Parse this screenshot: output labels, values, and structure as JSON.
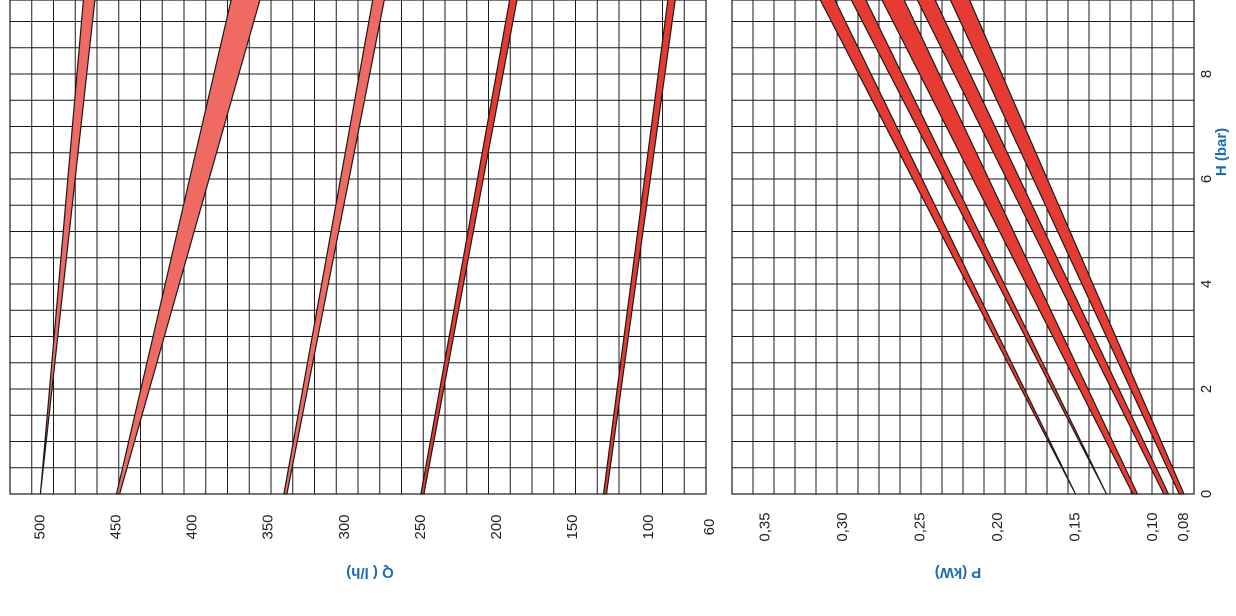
{
  "colors": {
    "band_fill": "#e63b32",
    "band_fill_light": "#ee6a63",
    "grid": "#1a1a1a",
    "axis_label": "#1c6cb5"
  },
  "chart_data": [
    {
      "type": "area",
      "title": "",
      "xlabel": "Q ( l/h)",
      "ylabel": "H (bar)",
      "xlim": [
        60,
        520
      ],
      "ylim": [
        0,
        10
      ],
      "x_reversed": true,
      "x_ticks": [
        "500",
        "450",
        "400",
        "350",
        "300",
        "250",
        "200",
        "150",
        "100",
        "60"
      ],
      "y_ticks": [
        "0",
        "2",
        "4",
        "6",
        "8"
      ],
      "grid": true,
      "series": [
        {
          "label_at_zero": "500",
          "lower": [
            [
              500,
              0
            ],
            [
              470,
              10
            ]
          ],
          "upper": [
            [
              500,
              0
            ],
            [
              462,
              10
            ]
          ]
        },
        {
          "label_at_zero": "450",
          "lower": [
            [
              450,
              0
            ],
            [
              370,
              10
            ]
          ],
          "upper": [
            [
              448,
              0
            ],
            [
              350,
              10
            ]
          ]
        },
        {
          "label_at_zero": "340",
          "lower": [
            [
              340,
              0
            ],
            [
              278,
              10
            ]
          ],
          "upper": [
            [
              338,
              0
            ],
            [
              270,
              10
            ]
          ]
        },
        {
          "label_at_zero": "250",
          "lower": [
            [
              250,
              0
            ],
            [
              188,
              10
            ]
          ],
          "upper": [
            [
              248,
              0
            ],
            [
              183,
              10
            ]
          ]
        },
        {
          "label_at_zero": "130",
          "lower": [
            [
              130,
              0
            ],
            [
              85,
              10
            ]
          ],
          "upper": [
            [
              128,
              0
            ],
            [
              80,
              10
            ]
          ]
        }
      ]
    },
    {
      "type": "area",
      "title": "",
      "xlabel": "P (kW)",
      "ylabel": "H (bar)",
      "xlim": [
        0.07,
        0.37
      ],
      "ylim": [
        0,
        10
      ],
      "x_reversed": true,
      "x_ticks": [
        "0,35",
        "0,30",
        "0,25",
        "0,20",
        "0,15",
        "0,10",
        "0,08"
      ],
      "y_ticks": [
        "0",
        "2",
        "4",
        "6",
        "8"
      ],
      "grid": true,
      "series": [
        {
          "lower": [
            [
              0.15,
              0
            ],
            [
              0.325,
              10
            ]
          ],
          "upper": [
            [
              0.15,
              0
            ],
            [
              0.315,
              10
            ]
          ]
        },
        {
          "lower": [
            [
              0.13,
              0
            ],
            [
              0.305,
              10
            ]
          ],
          "upper": [
            [
              0.13,
              0
            ],
            [
              0.295,
              10
            ]
          ]
        },
        {
          "lower": [
            [
              0.113,
              0
            ],
            [
              0.285,
              10
            ]
          ],
          "upper": [
            [
              0.11,
              0
            ],
            [
              0.27,
              10
            ]
          ]
        },
        {
          "lower": [
            [
              0.093,
              0
            ],
            [
              0.262,
              10
            ]
          ],
          "upper": [
            [
              0.09,
              0
            ],
            [
              0.25,
              10
            ]
          ]
        },
        {
          "lower": [
            [
              0.083,
              0
            ],
            [
              0.24,
              10
            ]
          ],
          "upper": [
            [
              0.08,
              0
            ],
            [
              0.227,
              10
            ]
          ]
        }
      ]
    }
  ]
}
